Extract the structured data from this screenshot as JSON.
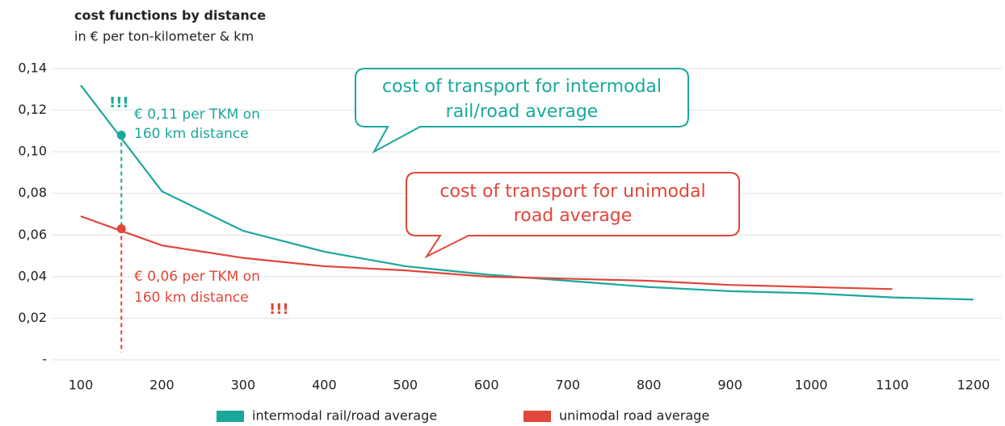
{
  "chart_data": {
    "type": "line",
    "title": "cost functions by distance",
    "subtitle": "in € per ton-kilometer & km",
    "x": [
      100,
      200,
      300,
      400,
      500,
      600,
      700,
      800,
      900,
      1000,
      1100,
      1200
    ],
    "series": [
      {
        "name": "intermodal rail/road average",
        "color": "#1aa89b",
        "values": [
          0.132,
          0.081,
          0.062,
          0.052,
          0.045,
          0.041,
          0.038,
          0.035,
          0.033,
          0.032,
          0.03,
          0.029
        ]
      },
      {
        "name": "unimodal road average",
        "color": "#e0463a",
        "values": [
          0.069,
          0.055,
          0.049,
          0.045,
          0.043,
          0.04,
          0.039,
          0.038,
          0.036,
          0.035,
          0.034,
          null
        ]
      }
    ],
    "xlim": [
      100,
      1200
    ],
    "xticks": [
      100,
      200,
      300,
      400,
      500,
      600,
      700,
      800,
      900,
      1000,
      1100,
      1200
    ],
    "ylim": [
      0,
      0.14
    ],
    "yticks": [
      {
        "value": 0,
        "label": "-"
      },
      {
        "value": 0.02,
        "label": "0,02"
      },
      {
        "value": 0.04,
        "label": "0,04"
      },
      {
        "value": 0.06,
        "label": "0,06"
      },
      {
        "value": 0.08,
        "label": "0,08"
      },
      {
        "value": 0.1,
        "label": "0,10"
      },
      {
        "value": 0.12,
        "label": "0,12"
      },
      {
        "value": 0.14,
        "label": "0,14"
      }
    ],
    "grid": true,
    "legend": "bottom",
    "markers": [
      {
        "x": 150,
        "y": 0.108
      },
      {
        "x": 150,
        "y": 0.063
      }
    ],
    "annotations": [
      {
        "text": "!!!"
      },
      {
        "text": "€ 0,11 per TKM on"
      },
      {
        "text": "160 km distance"
      },
      {
        "text": "€ 0,06 per TKM on"
      },
      {
        "text": "160 km distance"
      },
      {
        "text": "!!!"
      },
      {
        "text": "cost of transport for intermodal"
      },
      {
        "text": "rail/road average"
      },
      {
        "text": "cost of transport for unimodal"
      },
      {
        "text": "road average"
      }
    ]
  }
}
